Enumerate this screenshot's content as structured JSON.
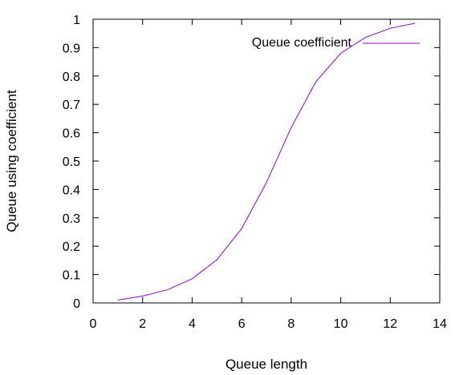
{
  "chart_data": {
    "type": "line",
    "title": "",
    "xlabel": "Queue length",
    "ylabel": "Queue using coefficient",
    "xlim": [
      0,
      14
    ],
    "ylim": [
      0,
      1
    ],
    "x_ticks": [
      0,
      2,
      4,
      6,
      8,
      10,
      12,
      14
    ],
    "y_ticks": [
      0,
      0.1,
      0.2,
      0.3,
      0.4,
      0.5,
      0.6,
      0.7,
      0.8,
      0.9,
      1
    ],
    "x_tick_labels": [
      "0",
      "2",
      "4",
      "6",
      "8",
      "10",
      "12",
      "14"
    ],
    "y_tick_labels": [
      "0",
      "0.1",
      "0.2",
      "0.3",
      "0.4",
      "0.5",
      "0.6",
      "0.7",
      "0.8",
      "0.9",
      "1"
    ],
    "grid": false,
    "legend_position": "top-right",
    "series": [
      {
        "name": "Queue coefficient",
        "color": "#9400d3",
        "x": [
          1,
          2,
          3,
          4,
          5,
          6,
          7,
          8,
          9,
          10,
          11,
          12,
          13
        ],
        "y": [
          0.01,
          0.024,
          0.046,
          0.085,
          0.152,
          0.262,
          0.424,
          0.618,
          0.78,
          0.88,
          0.936,
          0.968,
          0.986
        ]
      }
    ]
  }
}
